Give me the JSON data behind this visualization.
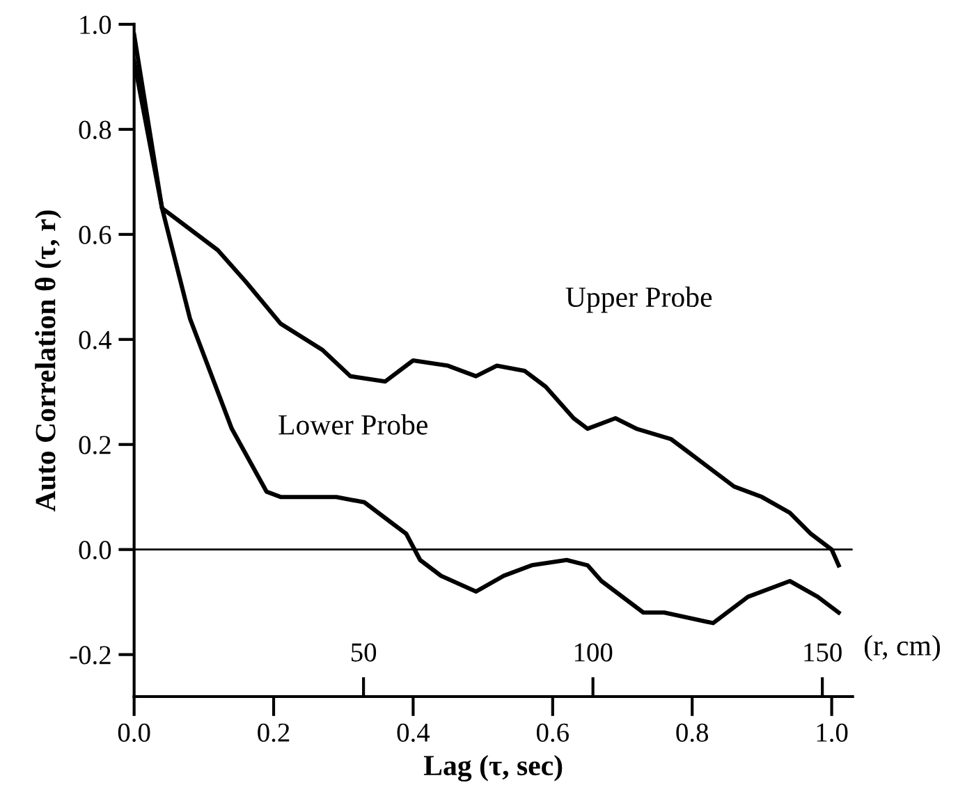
{
  "chart_data": {
    "type": "line",
    "xlabel": "Lag (τ, sec)",
    "ylabel": "Auto Correlation θ (τ, r)",
    "x2label": "(r, cm)",
    "xlim": [
      0,
      1.03
    ],
    "xticks": [
      {
        "value": 0,
        "label": "0.0"
      },
      0.2,
      0.4,
      0.6,
      0.8,
      {
        "value": 1,
        "label": "1.0"
      }
    ],
    "ylim": [
      -0.28,
      1.0
    ],
    "yticks": [
      {
        "value": -0.2,
        "label": "-0.2"
      },
      {
        "value": 0,
        "label": "0.0"
      },
      0.2,
      0.4,
      0.6,
      0.8,
      {
        "value": 1,
        "label": "1.0"
      }
    ],
    "x2lim": [
      0,
      156.6
    ],
    "x2ticks": [
      50,
      100,
      150
    ],
    "ref_lines": [
      {
        "axis": "y",
        "value": 0,
        "color": "#000000"
      }
    ],
    "grid": false,
    "legend": false,
    "marker": "none",
    "line_style": "solid",
    "series": [
      {
        "name": "Upper Probe",
        "color": "#000000",
        "x": [
          0,
          0.04,
          0.07,
          0.12,
          0.16,
          0.21,
          0.27,
          0.31,
          0.36,
          0.39,
          0.4,
          0.45,
          0.49,
          0.52,
          0.56,
          0.59,
          0.63,
          0.65,
          0.69,
          0.72,
          0.77,
          0.79,
          0.86,
          0.9,
          0.94,
          0.97,
          1.0,
          1.01
        ],
        "values": [
          0.93,
          0.65,
          0.62,
          0.57,
          0.51,
          0.43,
          0.38,
          0.33,
          0.32,
          0.35,
          0.36,
          0.35,
          0.33,
          0.35,
          0.34,
          0.31,
          0.25,
          0.23,
          0.25,
          0.23,
          0.21,
          0.19,
          0.12,
          0.1,
          0.07,
          0.03,
          0.0,
          -0.03
        ]
      },
      {
        "name": "Lower Probe",
        "color": "#000000",
        "x": [
          0,
          0.04,
          0.08,
          0.14,
          0.19,
          0.21,
          0.25,
          0.29,
          0.33,
          0.37,
          0.39,
          0.41,
          0.44,
          0.49,
          0.53,
          0.57,
          0.62,
          0.65,
          0.67,
          0.73,
          0.76,
          0.83,
          0.88,
          0.94,
          0.98,
          1.01
        ],
        "values": [
          0.98,
          0.65,
          0.44,
          0.23,
          0.11,
          0.1,
          0.1,
          0.1,
          0.09,
          0.05,
          0.03,
          -0.02,
          -0.05,
          -0.08,
          -0.05,
          -0.03,
          -0.02,
          -0.03,
          -0.06,
          -0.12,
          -0.12,
          -0.14,
          -0.09,
          -0.06,
          -0.09,
          -0.12
        ]
      }
    ]
  }
}
